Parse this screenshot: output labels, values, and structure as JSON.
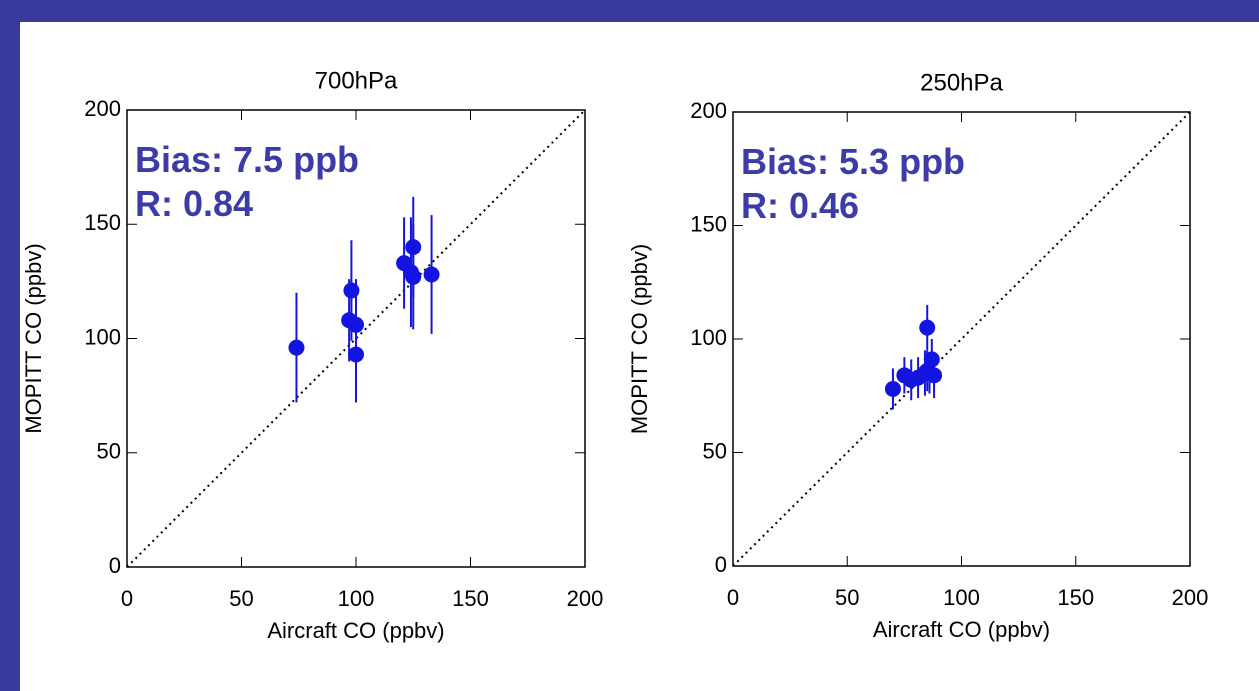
{
  "chart_data": [
    {
      "type": "scatter",
      "title": "700hPa",
      "xlabel": "Aircraft CO (ppbv)",
      "ylabel": "MOPITT CO (ppbv)",
      "annotations": [
        "Bias: 7.5 ppb",
        "R: 0.84"
      ],
      "color": "#1414e0",
      "identity_line": true,
      "xlim": [
        0,
        200
      ],
      "ylim": [
        0,
        200
      ],
      "xticks": [
        0,
        50,
        100,
        150,
        200
      ],
      "yticks": [
        0,
        50,
        100,
        150,
        200
      ],
      "x": [
        74,
        98,
        97,
        100,
        100,
        121,
        125,
        124,
        125,
        133
      ],
      "y": [
        96,
        121,
        108,
        106,
        93,
        133,
        140,
        129,
        127,
        128
      ],
      "errors": [
        24,
        22,
        18,
        20,
        21,
        20,
        22,
        24,
        23,
        26
      ]
    },
    {
      "type": "scatter",
      "title": "250hPa",
      "xlabel": "Aircraft CO (ppbv)",
      "ylabel": "MOPITT CO (ppbv)",
      "annotations": [
        "Bias: 5.3 ppb",
        "R: 0.46"
      ],
      "color": "#1414e0",
      "identity_line": true,
      "xlim": [
        0,
        200
      ],
      "ylim": [
        0,
        200
      ],
      "xticks": [
        0,
        50,
        100,
        150,
        200
      ],
      "yticks": [
        0,
        50,
        100,
        150,
        200
      ],
      "x": [
        70,
        75,
        78,
        81,
        84,
        85,
        85,
        87,
        88,
        86
      ],
      "y": [
        78,
        84,
        82,
        83,
        85,
        105,
        86,
        91,
        84,
        85
      ],
      "errors": [
        9,
        8,
        9,
        9,
        10,
        10,
        9,
        9,
        10,
        9
      ]
    }
  ]
}
